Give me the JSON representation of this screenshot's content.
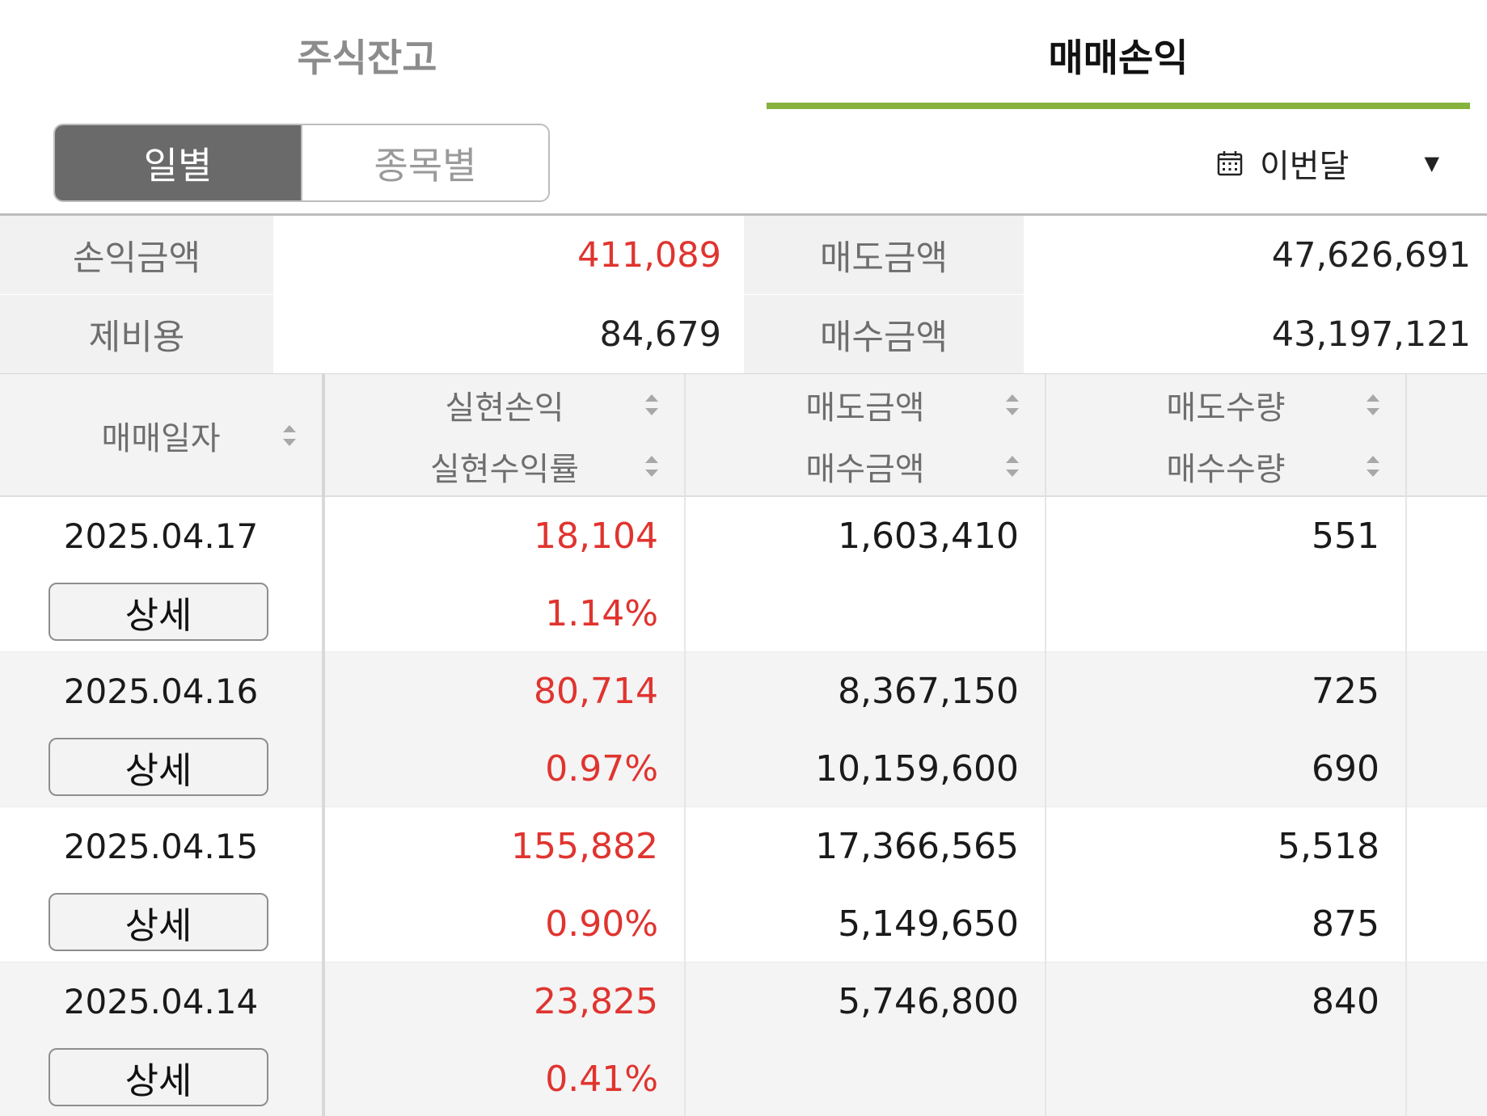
{
  "tabs": [
    {
      "label": "주식잔고",
      "active": false
    },
    {
      "label": "매매손익",
      "active": true
    }
  ],
  "accent_color": "#86b33d",
  "profit_color": "#e0342f",
  "view_toggle": {
    "options": [
      "일별",
      "종목별"
    ],
    "selected": "일별"
  },
  "period": {
    "icon": "calendar-icon",
    "label": "이번달",
    "caret": "▼"
  },
  "summary": {
    "profit_label": "손익금액",
    "profit_value": "411,089",
    "sell_amount_label": "매도금액",
    "sell_amount_value": "47,626,691",
    "fees_label": "제비용",
    "fees_value": "84,679",
    "buy_amount_label": "매수금액",
    "buy_amount_value": "43,197,121"
  },
  "table": {
    "headers": {
      "date": "매매일자",
      "realized_pl": "실현손익",
      "realized_rate": "실현수익률",
      "sell_amount": "매도금액",
      "buy_amount": "매수금액",
      "sell_qty": "매도수량",
      "buy_qty": "매수수량"
    },
    "detail_label": "상세",
    "rows": [
      {
        "date": "2025.04.17",
        "realized_pl": "18,104",
        "realized_rate": "1.14%",
        "sell_amount": "1,603,410",
        "buy_amount": "",
        "sell_qty": "551",
        "buy_qty": ""
      },
      {
        "date": "2025.04.16",
        "realized_pl": "80,714",
        "realized_rate": "0.97%",
        "sell_amount": "8,367,150",
        "buy_amount": "10,159,600",
        "sell_qty": "725",
        "buy_qty": "690"
      },
      {
        "date": "2025.04.15",
        "realized_pl": "155,882",
        "realized_rate": "0.90%",
        "sell_amount": "17,366,565",
        "buy_amount": "5,149,650",
        "sell_qty": "5,518",
        "buy_qty": "875"
      },
      {
        "date": "2025.04.14",
        "realized_pl": "23,825",
        "realized_rate": "0.41%",
        "sell_amount": "5,746,800",
        "buy_amount": "",
        "sell_qty": "840",
        "buy_qty": ""
      }
    ]
  }
}
